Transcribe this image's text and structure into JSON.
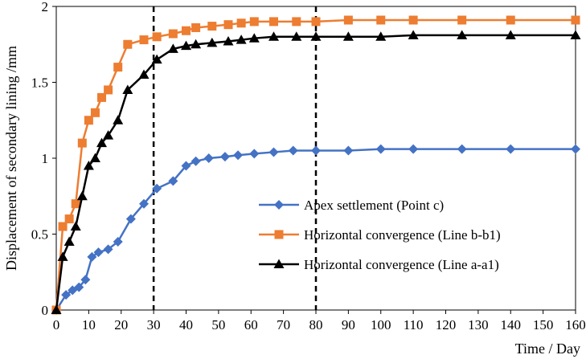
{
  "chart_data": {
    "type": "line",
    "title": "",
    "xlabel": "Time / Day",
    "ylabel": "Displacement of secondary  lining /mm",
    "xlim": [
      0,
      160
    ],
    "ylim": [
      0,
      2
    ],
    "x_ticks": [
      0,
      10,
      20,
      30,
      40,
      50,
      60,
      70,
      80,
      90,
      100,
      110,
      120,
      130,
      140,
      150,
      160
    ],
    "y_ticks": [
      0,
      0.5,
      1,
      1.5,
      2
    ],
    "y_tick_labels": [
      "0",
      "0.5",
      "1",
      "1.5",
      "2"
    ],
    "grid": false,
    "legend_position": "lower-right",
    "vertical_lines": [
      30,
      80
    ],
    "series": [
      {
        "name": "Apex settlement (Point c)",
        "color": "#4472C4",
        "marker": "diamond",
        "x": [
          0,
          3,
          5,
          7,
          9,
          11,
          13,
          16,
          19,
          23,
          27,
          31,
          36,
          40,
          43,
          47,
          52,
          56,
          61,
          67,
          73,
          80,
          90,
          100,
          110,
          125,
          140,
          160
        ],
        "y": [
          0,
          0.1,
          0.13,
          0.15,
          0.2,
          0.35,
          0.38,
          0.4,
          0.45,
          0.6,
          0.7,
          0.8,
          0.85,
          0.95,
          0.98,
          1.0,
          1.01,
          1.02,
          1.03,
          1.04,
          1.05,
          1.05,
          1.05,
          1.06,
          1.06,
          1.06,
          1.06,
          1.06
        ]
      },
      {
        "name": "Horizontal convergence (Line b-b1)",
        "color": "#ED7D31",
        "marker": "square",
        "x": [
          0,
          2,
          4,
          6,
          8,
          10,
          12,
          14,
          16,
          19,
          22,
          27,
          31,
          36,
          40,
          43,
          48,
          53,
          57,
          61,
          67,
          74,
          80,
          90,
          100,
          110,
          125,
          140,
          160
        ],
        "y": [
          0,
          0.55,
          0.6,
          0.7,
          1.1,
          1.25,
          1.3,
          1.4,
          1.45,
          1.6,
          1.75,
          1.78,
          1.8,
          1.82,
          1.84,
          1.86,
          1.87,
          1.88,
          1.89,
          1.9,
          1.9,
          1.9,
          1.9,
          1.91,
          1.91,
          1.91,
          1.91,
          1.91,
          1.91
        ]
      },
      {
        "name": "Horizontal convergence (Line a-a1)",
        "color": "#000000",
        "marker": "triangle",
        "x": [
          0,
          2,
          4,
          6,
          8,
          10,
          12,
          14,
          16,
          19,
          22,
          27,
          31,
          36,
          40,
          43,
          48,
          53,
          57,
          61,
          67,
          74,
          80,
          90,
          100,
          110,
          125,
          140,
          160
        ],
        "y": [
          0,
          0.35,
          0.45,
          0.55,
          0.75,
          0.95,
          1.0,
          1.1,
          1.15,
          1.25,
          1.45,
          1.55,
          1.65,
          1.72,
          1.74,
          1.75,
          1.76,
          1.77,
          1.78,
          1.79,
          1.8,
          1.8,
          1.8,
          1.8,
          1.8,
          1.81,
          1.81,
          1.81,
          1.81
        ]
      }
    ]
  }
}
